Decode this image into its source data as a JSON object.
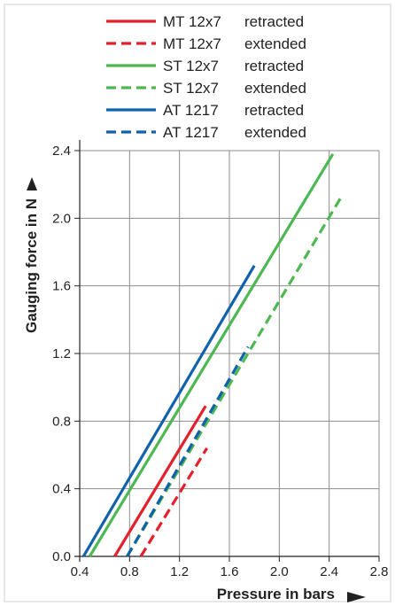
{
  "chart_data": {
    "type": "line",
    "xlabel": "Pressure in bars",
    "ylabel": "Gauging force in N",
    "xlim": [
      0.4,
      2.8
    ],
    "ylim": [
      0.0,
      2.4
    ],
    "x_ticks": [
      "0.4",
      "0.8",
      "1.2",
      "1.6",
      "2.0",
      "2.4",
      "2.8"
    ],
    "y_ticks": [
      "0.0",
      "0.4",
      "0.8",
      "1.2",
      "1.6",
      "2.0",
      "2.4"
    ],
    "x_tick_values": [
      0.4,
      0.8,
      1.2,
      1.6,
      2.0,
      2.4,
      2.8
    ],
    "y_tick_values": [
      0.0,
      0.4,
      0.8,
      1.2,
      1.6,
      2.0,
      2.4
    ],
    "grid": true,
    "legend_position": "top-center",
    "series": [
      {
        "name": "MT 12x7",
        "state": "retracted",
        "color": "#e3202b",
        "dash": "solid",
        "x": [
          0.68,
          1.41
        ],
        "y": [
          0.0,
          0.89
        ]
      },
      {
        "name": "MT 12x7",
        "state": "extended",
        "color": "#e3202b",
        "dash": "dashed",
        "x": [
          0.89,
          1.42
        ],
        "y": [
          0.0,
          0.64
        ]
      },
      {
        "name": "ST 12x7",
        "state": "retracted",
        "color": "#4db851",
        "dash": "solid",
        "x": [
          0.48,
          2.43
        ],
        "y": [
          0.0,
          2.38
        ]
      },
      {
        "name": "ST 12x7",
        "state": "extended",
        "color": "#4db851",
        "dash": "dashed",
        "x": [
          0.78,
          2.5
        ],
        "y": [
          0.0,
          2.13
        ]
      },
      {
        "name": "AT 1217",
        "state": "retracted",
        "color": "#1162ab",
        "dash": "solid",
        "x": [
          0.43,
          1.8
        ],
        "y": [
          0.0,
          1.72
        ]
      },
      {
        "name": "AT 1217",
        "state": "extended",
        "color": "#1162ab",
        "dash": "dashed",
        "x": [
          0.78,
          1.75
        ],
        "y": [
          0.0,
          1.24
        ]
      }
    ]
  }
}
